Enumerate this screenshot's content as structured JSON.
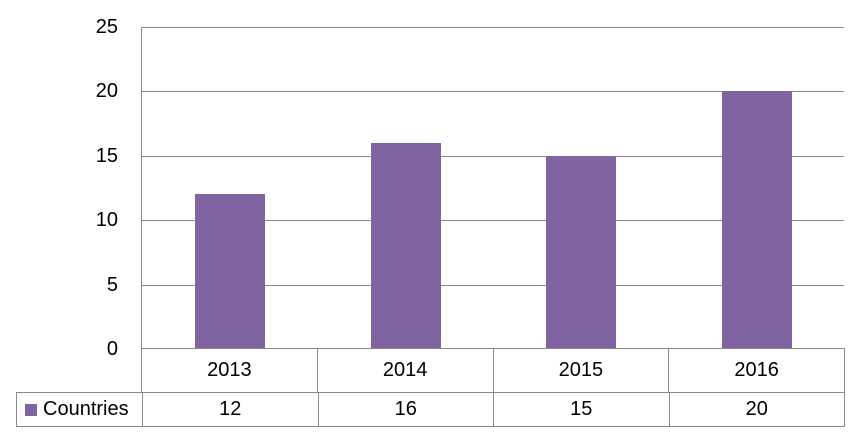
{
  "chart_data": {
    "type": "bar",
    "title": "",
    "categories": [
      "2013",
      "2014",
      "2015",
      "2016"
    ],
    "series": [
      {
        "name": "Countries",
        "values": [
          12,
          16,
          15,
          20
        ]
      }
    ],
    "xlabel": "",
    "ylabel": "",
    "ylim": [
      0,
      25
    ],
    "yticks": [
      0,
      5,
      10,
      15,
      20,
      25
    ],
    "grid": "horizontal",
    "legend_position": "data-table-left",
    "data_table_shown": true,
    "bar_color": "#8064A2",
    "axis_color": "#8a8a8a",
    "text_color": "#000000",
    "background_color": "#FFFFFF"
  }
}
